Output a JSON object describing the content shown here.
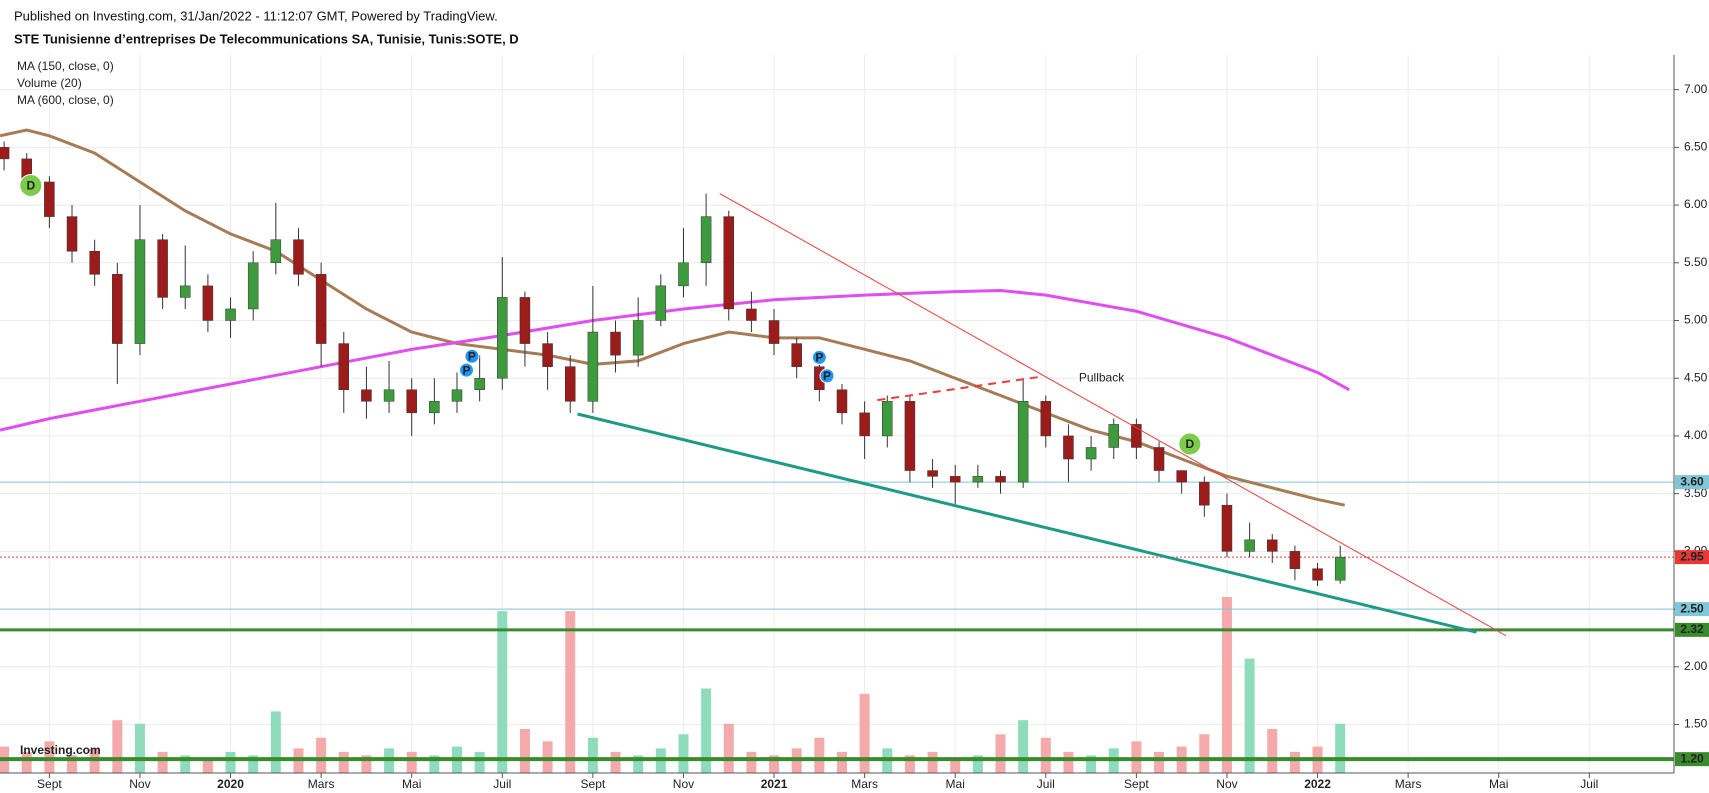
{
  "header": {
    "published": "Published on Investing.com, 31/Jan/2022 - 11:12:07 GMT, Powered by TradingView.",
    "title": "STE Tunisienne d’entreprises De Telecommunications SA, Tunisie, Tunis:SOTE, D",
    "logo": "Investing.com"
  },
  "chart_data": {
    "type": "candlestick",
    "xlim": [
      -1.09,
      35.87
    ],
    "xticks": [
      {
        "value": 0,
        "label": "Sept"
      },
      {
        "value": 2,
        "label": "Nov"
      },
      {
        "value": 4,
        "label": "2020"
      },
      {
        "value": 6,
        "label": "Mars"
      },
      {
        "value": 8,
        "label": "Mai"
      },
      {
        "value": 10,
        "label": "Juil"
      },
      {
        "value": 12,
        "label": "Sept"
      },
      {
        "value": 14,
        "label": "Nov"
      },
      {
        "value": 16,
        "label": "2021"
      },
      {
        "value": 18,
        "label": "Mars"
      },
      {
        "value": 20,
        "label": "Mai"
      },
      {
        "value": 22,
        "label": "Juil"
      },
      {
        "value": 24,
        "label": "Sept"
      },
      {
        "value": 26,
        "label": "Nov"
      },
      {
        "value": 28,
        "label": "2022"
      },
      {
        "value": 30,
        "label": "Mars"
      },
      {
        "value": 32,
        "label": "Mai"
      },
      {
        "value": 34,
        "label": "Juil"
      }
    ],
    "ylim": [
      1.08,
      7.3
    ],
    "yticks": [
      {
        "value": 1.5,
        "label": "1.50"
      },
      {
        "value": 2,
        "label": "2.00"
      },
      {
        "value": 2.5,
        "label": "2.50"
      },
      {
        "value": 3,
        "label": "3.00"
      },
      {
        "value": 3.5,
        "label": "3.50"
      },
      {
        "value": 4,
        "label": "4.00"
      },
      {
        "value": 4.5,
        "label": "4.50"
      },
      {
        "value": 5,
        "label": "5.00"
      },
      {
        "value": 5.5,
        "label": "5.50"
      },
      {
        "value": 6,
        "label": "6.00"
      },
      {
        "value": 6.5,
        "label": "6.50"
      },
      {
        "value": 7,
        "label": "7.00"
      }
    ],
    "grid": true,
    "candles": {
      "up_color": "#3d9b3d",
      "down_color": "#9c1c1c",
      "x": [
        -1,
        -0.5,
        0,
        0.5,
        1,
        1.5,
        2,
        2.5,
        3,
        3.5,
        4,
        4.5,
        5,
        5.5,
        6,
        6.5,
        7,
        7.5,
        8,
        8.5,
        9,
        9.5,
        10,
        10.5,
        11,
        11.5,
        12,
        12.5,
        13,
        13.5,
        14,
        14.5,
        15,
        15.5,
        16,
        16.5,
        17,
        17.5,
        18,
        18.5,
        19,
        19.5,
        20,
        20.5,
        21,
        21.5,
        22,
        22.5,
        23,
        23.5,
        24,
        24.5,
        25,
        25.5,
        26,
        26.5,
        27,
        27.5,
        28,
        28.5
      ],
      "open": [
        6.5,
        6.4,
        6.2,
        5.9,
        5.6,
        5.4,
        4.8,
        5.7,
        5.2,
        5.3,
        5.0,
        5.1,
        5.5,
        5.7,
        5.4,
        4.8,
        4.4,
        4.3,
        4.4,
        4.2,
        4.3,
        4.4,
        4.5,
        5.2,
        4.8,
        4.6,
        4.3,
        4.9,
        4.7,
        5.0,
        5.3,
        5.5,
        5.9,
        5.1,
        5.0,
        4.8,
        4.6,
        4.4,
        4.2,
        4.0,
        4.3,
        3.7,
        3.65,
        3.6,
        3.65,
        3.6,
        4.3,
        4.0,
        3.8,
        3.9,
        4.1,
        3.9,
        3.7,
        3.6,
        3.4,
        3.0,
        3.1,
        3.0,
        2.85,
        2.75
      ],
      "high": [
        6.55,
        6.45,
        6.25,
        6.0,
        5.7,
        5.5,
        6.0,
        5.75,
        5.65,
        5.4,
        5.2,
        5.6,
        6.02,
        5.8,
        5.5,
        4.9,
        4.6,
        4.65,
        4.5,
        4.5,
        4.55,
        4.7,
        5.55,
        5.25,
        4.9,
        4.7,
        5.3,
        5.0,
        5.2,
        5.4,
        5.8,
        6.1,
        5.95,
        5.25,
        5.1,
        4.85,
        4.7,
        4.45,
        4.3,
        4.35,
        4.35,
        3.8,
        3.75,
        3.75,
        3.7,
        4.5,
        4.35,
        4.1,
        4.0,
        4.15,
        4.15,
        3.95,
        3.7,
        3.65,
        3.5,
        3.25,
        3.15,
        3.05,
        2.9,
        3.05
      ],
      "low": [
        6.3,
        6.1,
        5.8,
        5.5,
        5.3,
        4.45,
        4.7,
        5.1,
        5.1,
        4.9,
        4.85,
        5.0,
        5.4,
        5.3,
        4.6,
        4.2,
        4.15,
        4.2,
        4.0,
        4.1,
        4.2,
        4.3,
        4.4,
        4.6,
        4.4,
        4.2,
        4.2,
        4.55,
        4.6,
        4.95,
        5.2,
        5.3,
        5.0,
        4.9,
        4.7,
        4.5,
        4.3,
        4.1,
        3.8,
        3.9,
        3.6,
        3.55,
        3.4,
        3.55,
        3.5,
        3.55,
        3.9,
        3.6,
        3.7,
        3.8,
        3.8,
        3.6,
        3.5,
        3.3,
        2.95,
        2.95,
        2.9,
        2.75,
        2.7,
        2.72
      ],
      "close": [
        6.4,
        6.2,
        5.9,
        5.6,
        5.4,
        4.8,
        5.7,
        5.2,
        5.3,
        5.0,
        5.1,
        5.5,
        5.7,
        5.4,
        4.8,
        4.4,
        4.3,
        4.4,
        4.2,
        4.3,
        4.4,
        4.5,
        5.2,
        4.8,
        4.6,
        4.3,
        4.9,
        4.7,
        5.0,
        5.3,
        5.5,
        5.9,
        5.1,
        5.0,
        4.8,
        4.6,
        4.4,
        4.2,
        4.0,
        4.3,
        3.7,
        3.65,
        3.6,
        3.65,
        3.6,
        4.3,
        4.0,
        3.8,
        3.9,
        4.1,
        3.9,
        3.7,
        3.6,
        3.4,
        3.0,
        3.1,
        3.0,
        2.85,
        2.75,
        2.95
      ]
    },
    "volume": {
      "name": "Volume (20)",
      "vlim": [
        0,
        100
      ],
      "up_color": "#8fdcbc",
      "down_color": "#f4aaaa",
      "values": [
        15,
        12,
        18,
        10,
        14,
        30,
        28,
        12,
        10,
        8,
        12,
        10,
        35,
        14,
        20,
        12,
        10,
        14,
        12,
        10,
        15,
        12,
        92,
        25,
        18,
        92,
        20,
        12,
        10,
        14,
        22,
        48,
        28,
        12,
        10,
        14,
        20,
        12,
        45,
        14,
        10,
        12,
        8,
        10,
        22,
        30,
        20,
        12,
        10,
        14,
        18,
        12,
        15,
        22,
        100,
        65,
        25,
        12,
        15,
        28
      ]
    },
    "series": [
      {
        "name": "MA (150, close, 0)",
        "color": "#a57c55",
        "width": 3,
        "x": [
          -1.09,
          -0.5,
          0,
          1,
          2,
          3,
          4,
          5,
          6,
          7,
          8,
          9,
          10,
          11,
          12,
          13,
          14,
          15,
          16,
          17,
          18,
          19,
          20,
          21,
          22,
          23,
          24,
          25,
          26,
          27,
          28,
          28.6
        ],
        "values": [
          6.6,
          6.65,
          6.6,
          6.45,
          6.2,
          5.95,
          5.75,
          5.6,
          5.35,
          5.1,
          4.9,
          4.8,
          4.75,
          4.7,
          4.62,
          4.65,
          4.8,
          4.9,
          4.85,
          4.85,
          4.75,
          4.65,
          4.5,
          4.35,
          4.2,
          4.05,
          3.95,
          3.8,
          3.65,
          3.55,
          3.45,
          3.4
        ]
      },
      {
        "name": "MA (600, close, 0)",
        "color": "#e14ef0",
        "width": 3,
        "x": [
          -1.09,
          0,
          2,
          4,
          6,
          8,
          10,
          12,
          14,
          16,
          18,
          20,
          21,
          22,
          24,
          26,
          28,
          28.7
        ],
        "values": [
          4.05,
          4.15,
          4.3,
          4.45,
          4.6,
          4.75,
          4.87,
          5.0,
          5.1,
          5.18,
          5.22,
          5.25,
          5.26,
          5.22,
          5.08,
          4.85,
          4.55,
          4.4
        ]
      }
    ],
    "levels": [
      {
        "value": 3.6,
        "label": "3.60",
        "color": "#7fc7d9",
        "width": 1,
        "dashed": false
      },
      {
        "value": 2.95,
        "label": "2.95",
        "color": "#e53935",
        "width": 1,
        "dashed": true
      },
      {
        "value": 2.5,
        "label": "2.50",
        "color": "#7fc7d9",
        "width": 1,
        "dashed": false
      },
      {
        "value": 2.32,
        "label": "2.32",
        "color": "#3a8a2e",
        "width": 3,
        "dashed": false
      },
      {
        "value": 1.2,
        "label": "1.20",
        "color": "#3a8a2e",
        "width": 4,
        "dashed": false
      }
    ],
    "trendlines": [
      {
        "x": [
          14.8,
          32.16
        ],
        "values": [
          6.1,
          2.27
        ],
        "color": "#f03a3a",
        "width": 1,
        "dashed": false
      },
      {
        "x": [
          11.66,
          31.51
        ],
        "values": [
          4.19,
          2.3
        ],
        "color": "#1e9a86",
        "width": 3,
        "dashed": false
      },
      {
        "x": [
          18.28,
          21.84
        ],
        "values": [
          4.31,
          4.51
        ],
        "color": "#f03a3a",
        "width": 2,
        "dashed": true
      }
    ],
    "markers": [
      {
        "x": -0.41,
        "y": 6.17,
        "label": "D",
        "color": "#7ccb4a"
      },
      {
        "x": 25.18,
        "y": 3.93,
        "label": "D",
        "color": "#7ccb4a"
      },
      {
        "x": 9.33,
        "y": 4.69,
        "label": "P",
        "color": "#2196f3"
      },
      {
        "x": 9.21,
        "y": 4.57,
        "label": "P",
        "color": "#2196f3"
      },
      {
        "x": 17.0,
        "y": 4.68,
        "label": "P",
        "color": "#2196f3"
      },
      {
        "x": 17.17,
        "y": 4.52,
        "label": "P",
        "color": "#2196f3"
      }
    ],
    "annotations": [
      {
        "text": "Pullback",
        "x": 22.73,
        "y": 4.5
      }
    ]
  }
}
